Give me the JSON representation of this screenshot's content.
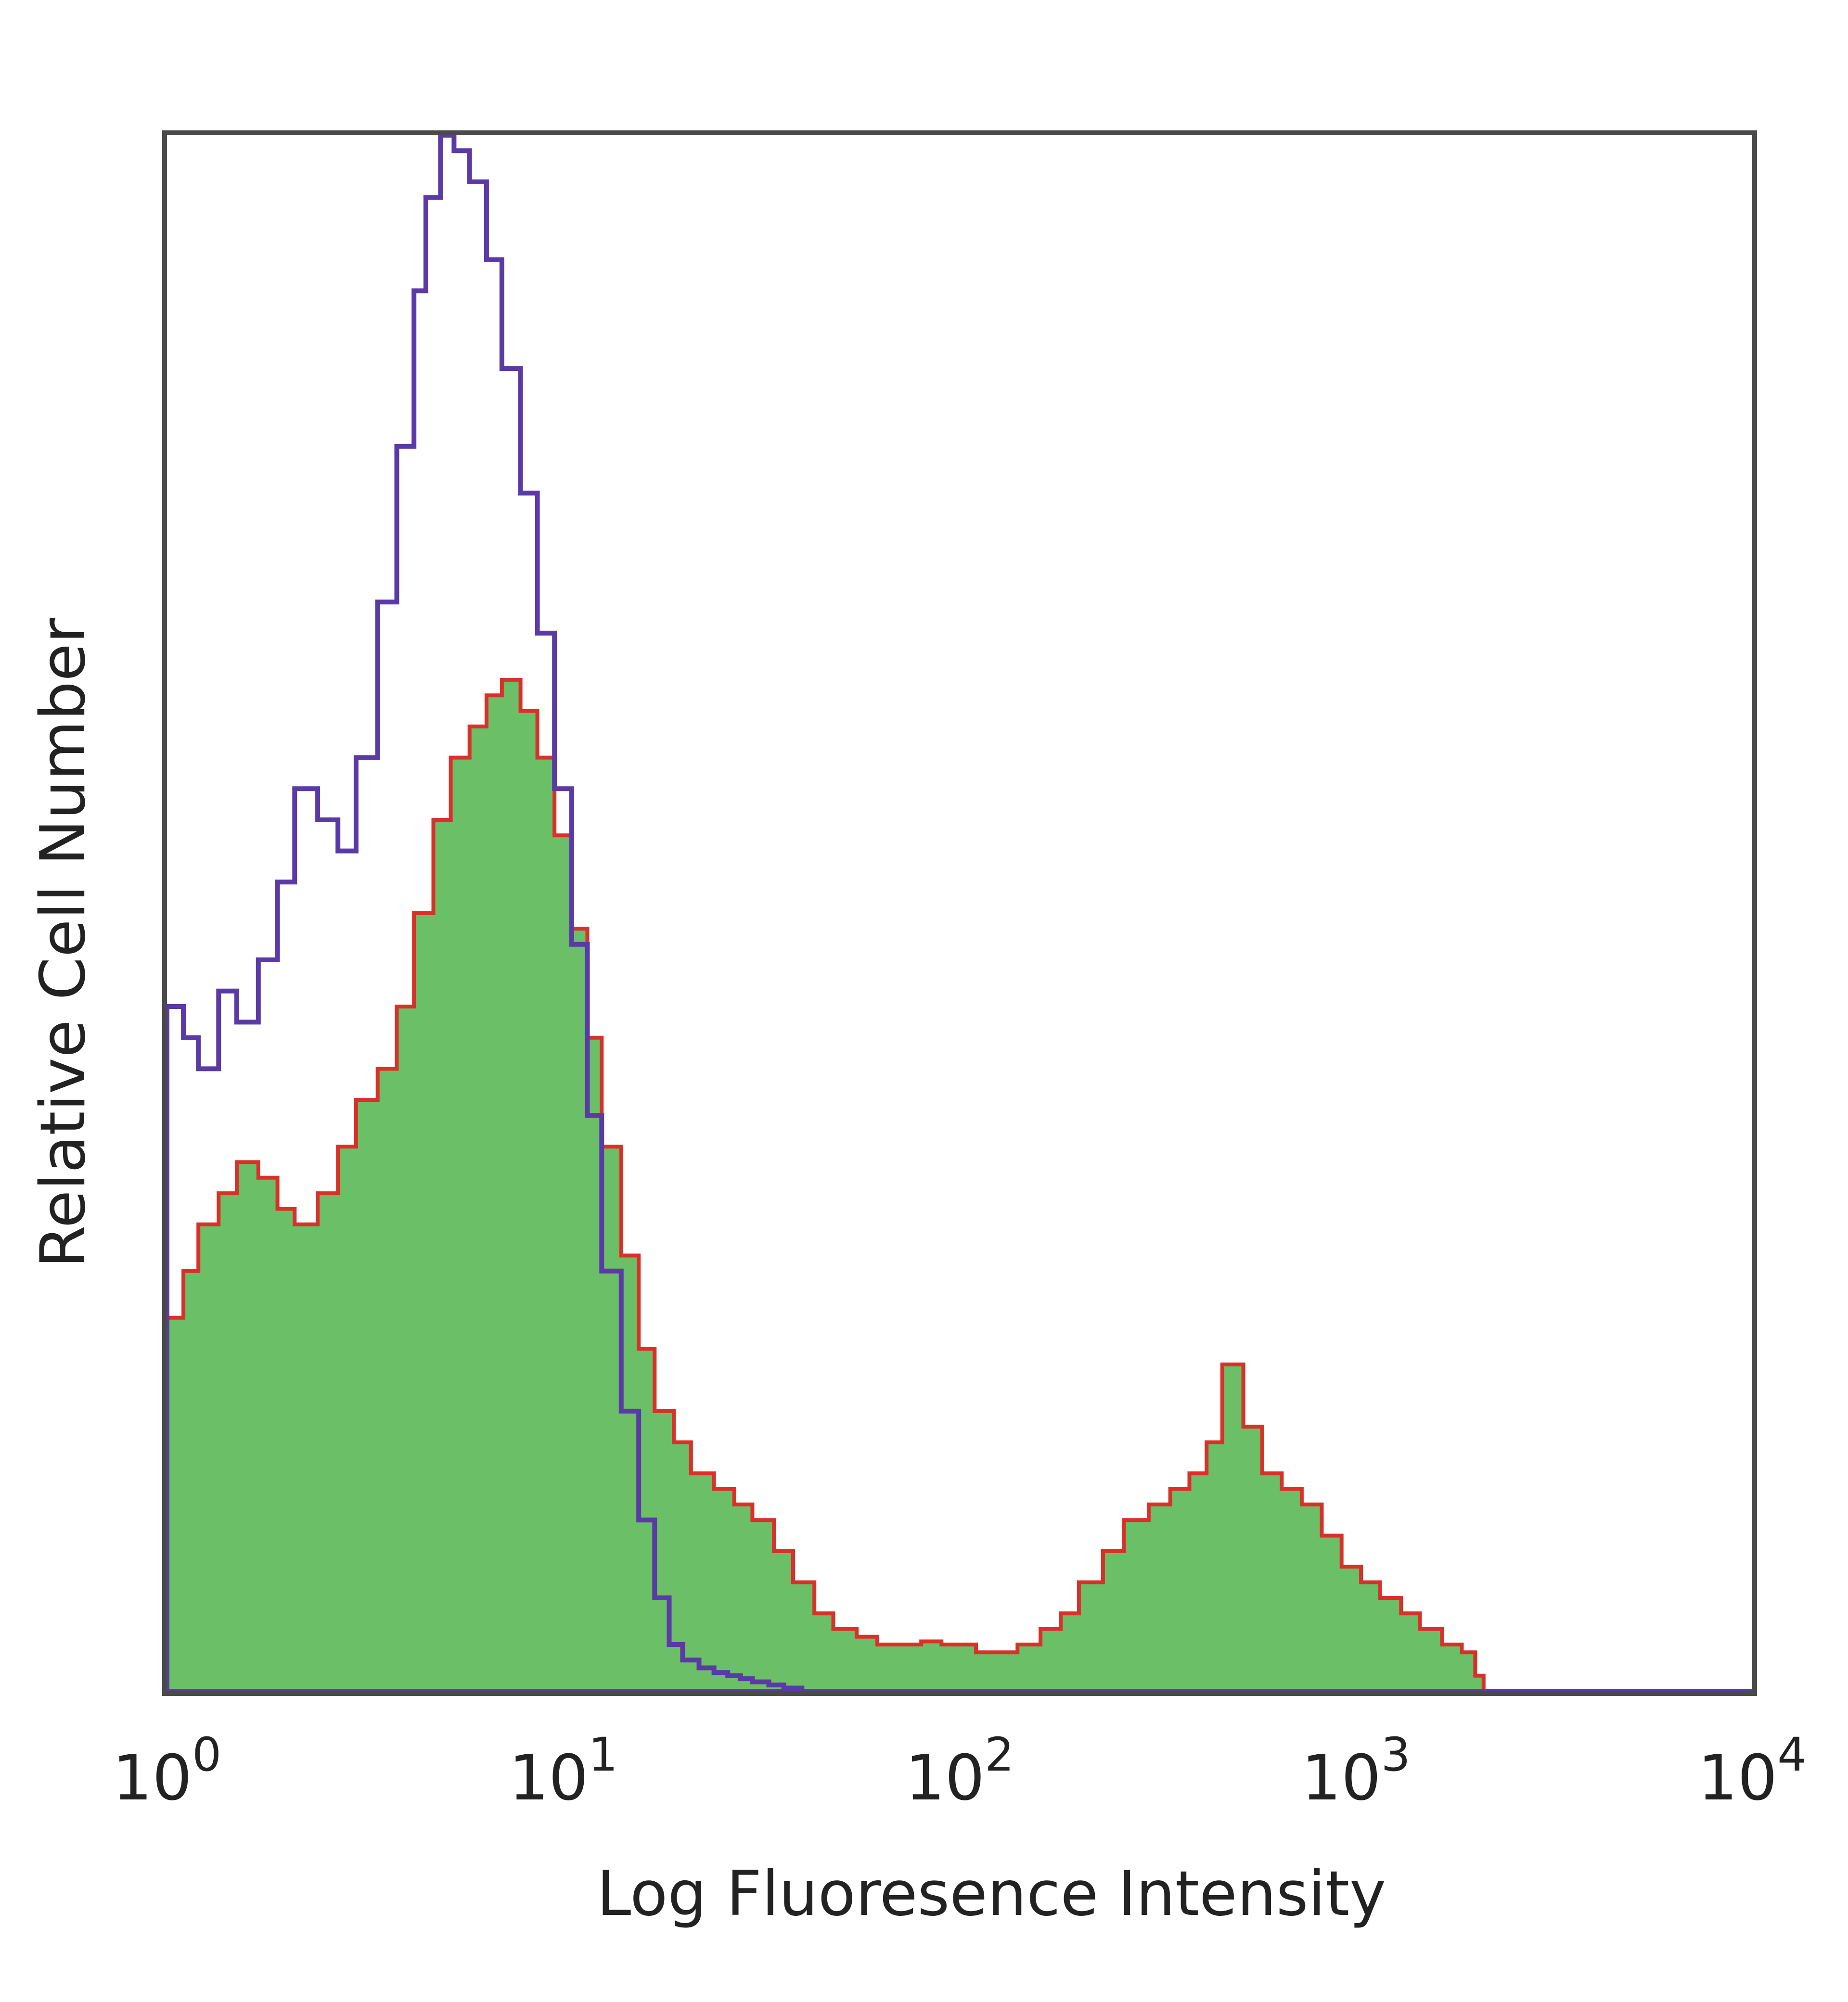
{
  "chart_data": {
    "type": "area",
    "xscale": "log",
    "xlim": [
      1,
      10000
    ],
    "ylim": [
      0,
      100
    ],
    "grid": false,
    "legend": "none",
    "xlabel": "Log Fluoresence Intensity",
    "ylabel": "Relative Cell Number",
    "x_ticks": [
      {
        "base": "10",
        "exp": "0",
        "value": 1
      },
      {
        "base": "10",
        "exp": "1",
        "value": 10
      },
      {
        "base": "10",
        "exp": "2",
        "value": 100
      },
      {
        "base": "10",
        "exp": "3",
        "value": 1000
      },
      {
        "base": "10",
        "exp": "4",
        "value": 10000
      }
    ],
    "series": [
      {
        "style": "filled",
        "fill_color": "#6bbf67",
        "line_color": "#d9302a",
        "x": [
          1,
          1.1,
          1.2,
          1.35,
          1.5,
          1.7,
          1.9,
          2.1,
          2.4,
          2.7,
          3.0,
          3.4,
          3.8,
          4.2,
          4.7,
          5.2,
          5.8,
          6.4,
          7.0,
          7.8,
          8.6,
          9.5,
          10.5,
          11.5,
          12.5,
          14,
          15.5,
          17,
          19,
          21,
          24,
          27,
          30,
          34,
          38,
          43,
          48,
          55,
          62,
          70,
          80,
          90,
          100,
          110,
          125,
          140,
          160,
          180,
          200,
          230,
          260,
          300,
          340,
          380,
          420,
          460,
          520,
          580,
          650,
          730,
          820,
          920,
          1030,
          1150,
          1300,
          1450,
          1650,
          1850,
          2000,
          2100
        ],
        "y": [
          24,
          27,
          30,
          32,
          34,
          33,
          31,
          30,
          32,
          35,
          38,
          40,
          44,
          50,
          56,
          60,
          62,
          64,
          65,
          63,
          60,
          55,
          49,
          42,
          35,
          28,
          22,
          18,
          16,
          14,
          13,
          12,
          11,
          9,
          7,
          5,
          4,
          3.5,
          3,
          3,
          3.2,
          3,
          3,
          2.5,
          2.5,
          3,
          4,
          5,
          7,
          9,
          11,
          12,
          13,
          14,
          16,
          21,
          17,
          14,
          13,
          12,
          10,
          8,
          7,
          6,
          5,
          4,
          3,
          2.5,
          1,
          0
        ]
      },
      {
        "style": "outline",
        "line_color": "#5a3aa6",
        "x": [
          1,
          1.1,
          1.2,
          1.35,
          1.5,
          1.7,
          1.9,
          2.1,
          2.4,
          2.7,
          3.0,
          3.4,
          3.8,
          4.2,
          4.5,
          4.9,
          5.3,
          5.8,
          6.4,
          7.0,
          7.8,
          8.6,
          9.5,
          10.5,
          11.5,
          12.5,
          14,
          15.5,
          17,
          18.5,
          20,
          22,
          24,
          26,
          28,
          30,
          33,
          36,
          40
        ],
        "y": [
          44,
          42,
          40,
          45,
          43,
          47,
          52,
          58,
          56,
          54,
          60,
          70,
          80,
          90,
          96,
          100,
          99,
          97,
          92,
          85,
          77,
          68,
          58,
          48,
          37,
          27,
          18,
          11,
          6,
          3,
          2,
          1.5,
          1.2,
          1,
          0.8,
          0.6,
          0.4,
          0.2,
          0
        ]
      }
    ]
  }
}
